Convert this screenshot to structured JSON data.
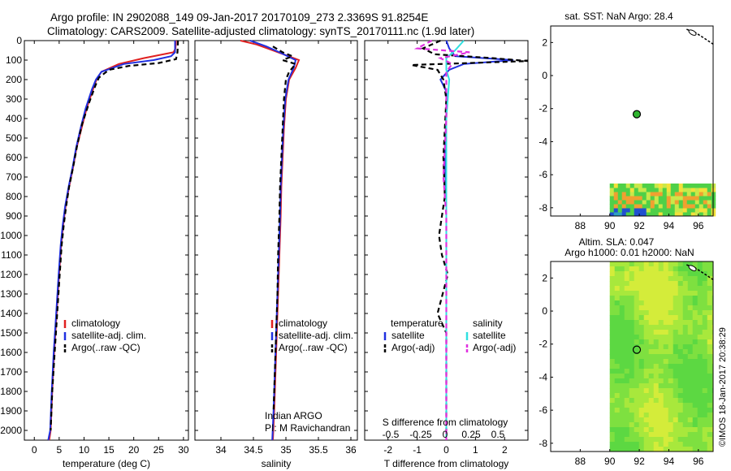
{
  "header": {
    "line1": "Argo profile: IN 2902088_149 09-Jan-2017 20170109_273 2.3369S 91.8254E",
    "line2": "Climatology: CARS2009. Satellite-adjusted climatology: synTS_20170111.nc (1.9d later)"
  },
  "colors": {
    "clim": "#e02020",
    "sat": "#2030e0",
    "argo": "#000000",
    "sal_sat": "#30e0e0",
    "sal_argo": "#e030e0"
  },
  "chart_data": [
    {
      "id": "temperature",
      "type": "line",
      "xlabel": "temperature (deg C)",
      "ylabel": "depth",
      "xlim": [
        -2,
        31
      ],
      "ylim": [
        0,
        2050
      ],
      "xticks": [
        0,
        5,
        10,
        15,
        20,
        25,
        30
      ],
      "yticks": [
        0,
        100,
        200,
        300,
        400,
        500,
        600,
        700,
        800,
        900,
        1000,
        1100,
        1200,
        1300,
        1400,
        1500,
        1600,
        1700,
        1800,
        1900,
        2000
      ],
      "legend": [
        "climatology",
        "satellite-adj. clim.",
        "Argo(..raw -QC)"
      ],
      "series": [
        {
          "name": "climatology",
          "color": "clim",
          "dash": false,
          "points": [
            [
              28.5,
              0
            ],
            [
              28.4,
              40
            ],
            [
              28.0,
              60
            ],
            [
              22.0,
              90
            ],
            [
              17.0,
              120
            ],
            [
              13.5,
              160
            ],
            [
              12.5,
              200
            ],
            [
              11.8,
              250
            ],
            [
              10.5,
              350
            ],
            [
              9.5,
              450
            ],
            [
              8.5,
              550
            ],
            [
              7.8,
              650
            ],
            [
              7.0,
              750
            ],
            [
              6.3,
              850
            ],
            [
              5.8,
              950
            ],
            [
              5.4,
              1050
            ],
            [
              5.0,
              1200
            ],
            [
              4.5,
              1400
            ],
            [
              4.0,
              1600
            ],
            [
              3.6,
              1800
            ],
            [
              3.3,
              2000
            ],
            [
              3.0,
              2050
            ]
          ]
        },
        {
          "name": "satellite-adj. clim.",
          "color": "sat",
          "dash": false,
          "points": [
            [
              28.3,
              0
            ],
            [
              28.3,
              60
            ],
            [
              27.5,
              80
            ],
            [
              24.0,
              100
            ],
            [
              18.0,
              120
            ],
            [
              13.5,
              160
            ],
            [
              12.4,
              200
            ],
            [
              11.6,
              250
            ],
            [
              10.3,
              350
            ],
            [
              9.3,
              450
            ],
            [
              8.4,
              550
            ],
            [
              7.7,
              650
            ],
            [
              6.9,
              750
            ],
            [
              6.2,
              850
            ],
            [
              5.7,
              950
            ],
            [
              5.3,
              1050
            ],
            [
              4.9,
              1200
            ],
            [
              4.4,
              1400
            ],
            [
              3.9,
              1600
            ],
            [
              3.5,
              1800
            ],
            [
              3.2,
              2000
            ],
            [
              2.8,
              2050
            ]
          ]
        },
        {
          "name": "Argo(..raw -QC)",
          "color": "argo",
          "dash": true,
          "points": [
            [
              28.9,
              0
            ],
            [
              28.8,
              60
            ],
            [
              28.5,
              95
            ],
            [
              25.0,
              115
            ],
            [
              19.0,
              130
            ],
            [
              15.0,
              150
            ],
            [
              13.0,
              190
            ],
            [
              12.3,
              230
            ],
            [
              11.0,
              320
            ],
            [
              9.6,
              430
            ],
            [
              8.6,
              540
            ],
            [
              7.8,
              650
            ],
            [
              7.0,
              750
            ],
            [
              6.4,
              850
            ],
            [
              5.9,
              950
            ],
            [
              5.5,
              1050
            ],
            [
              5.1,
              1200
            ],
            [
              4.6,
              1400
            ],
            [
              4.1,
              1600
            ],
            [
              3.6,
              1800
            ],
            [
              3.3,
              2000
            ]
          ]
        }
      ]
    },
    {
      "id": "salinity",
      "type": "line",
      "xlabel": "salinity",
      "ylabel": "depth",
      "xlim": [
        33.6,
        36.1
      ],
      "ylim": [
        0,
        2050
      ],
      "xticks": [
        34,
        34.5,
        35,
        35.5,
        36
      ],
      "legend": [
        "climatology",
        "satellite-adj. clim.",
        "Argo(..raw -QC)"
      ],
      "annotation": [
        "Indian ARGO",
        "PI: M Ravichandran"
      ],
      "series": [
        {
          "name": "climatology",
          "color": "clim",
          "dash": false,
          "points": [
            [
              34.3,
              0
            ],
            [
              34.55,
              20
            ],
            [
              34.8,
              50
            ],
            [
              35.2,
              100
            ],
            [
              35.15,
              140
            ],
            [
              35.05,
              200
            ],
            [
              35.0,
              300
            ],
            [
              34.97,
              450
            ],
            [
              34.95,
              600
            ],
            [
              34.93,
              750
            ],
            [
              34.92,
              900
            ],
            [
              34.9,
              1100
            ],
            [
              34.88,
              1300
            ],
            [
              34.86,
              1500
            ],
            [
              34.84,
              1700
            ],
            [
              34.82,
              1900
            ],
            [
              34.8,
              2050
            ]
          ]
        },
        {
          "name": "satellite-adj. clim.",
          "color": "sat",
          "dash": false,
          "points": [
            [
              34.45,
              0
            ],
            [
              34.7,
              30
            ],
            [
              34.9,
              60
            ],
            [
              35.15,
              100
            ],
            [
              35.12,
              140
            ],
            [
              35.04,
              200
            ],
            [
              34.99,
              300
            ],
            [
              34.96,
              450
            ],
            [
              34.94,
              600
            ],
            [
              34.92,
              750
            ],
            [
              34.91,
              900
            ],
            [
              34.89,
              1100
            ],
            [
              34.87,
              1300
            ],
            [
              34.85,
              1500
            ],
            [
              34.83,
              1700
            ],
            [
              34.81,
              1900
            ],
            [
              34.79,
              2050
            ]
          ]
        },
        {
          "name": "Argo(..raw -QC)",
          "color": "argo",
          "dash": true,
          "points": [
            [
              34.8,
              30
            ],
            [
              34.95,
              60
            ],
            [
              35.1,
              80
            ],
            [
              34.95,
              100
            ],
            [
              35.15,
              120
            ],
            [
              35.05,
              160
            ],
            [
              35.0,
              200
            ],
            [
              34.97,
              300
            ],
            [
              34.95,
              450
            ],
            [
              34.93,
              600
            ],
            [
              34.91,
              750
            ],
            [
              34.9,
              900
            ],
            [
              34.88,
              1100
            ],
            [
              34.87,
              1300
            ],
            [
              34.85,
              1500
            ],
            [
              34.83,
              1700
            ],
            [
              34.81,
              1900
            ]
          ]
        }
      ]
    },
    {
      "id": "difference",
      "type": "line",
      "xlabel": "T difference from climatology",
      "top_label": "S difference from climatology",
      "top_ticks": [
        "-0.5",
        "-0.25",
        "0",
        "0.25",
        "0.5"
      ],
      "xlim": [
        -2.8,
        2.8
      ],
      "ylim": [
        0,
        2050
      ],
      "xticks": [
        -2,
        -1,
        0,
        1,
        2
      ],
      "legend_left_title": "temperature",
      "legend_right_title": "salinity",
      "legend_left": [
        "satellite",
        "Argo(-adj)"
      ],
      "legend_right": [
        "satellite",
        "Argo(-adj)"
      ],
      "series": [
        {
          "name": "temperature satellite",
          "color": "sat",
          "dash": false,
          "points": [
            [
              0,
              0
            ],
            [
              0.1,
              40
            ],
            [
              0.3,
              80
            ],
            [
              2.3,
              100
            ],
            [
              0.6,
              120
            ],
            [
              0.1,
              150
            ],
            [
              -0.2,
              200
            ],
            [
              0,
              260
            ],
            [
              0,
              400
            ],
            [
              -0.05,
              600
            ],
            [
              0,
              800
            ],
            [
              0,
              1200
            ],
            [
              0,
              1600
            ],
            [
              0,
              2050
            ]
          ]
        },
        {
          "name": "temperature Argo",
          "color": "argo",
          "dash": true,
          "points": [
            [
              -0.2,
              0
            ],
            [
              -0.8,
              40
            ],
            [
              -0.4,
              70
            ],
            [
              1.6,
              90
            ],
            [
              2.8,
              105
            ],
            [
              -1.2,
              125
            ],
            [
              -0.3,
              150
            ],
            [
              -0.1,
              200
            ],
            [
              0,
              300
            ],
            [
              -0.1,
              600
            ],
            [
              -0.05,
              800
            ],
            [
              -0.25,
              1000
            ],
            [
              -0.15,
              1100
            ],
            [
              0.05,
              1200
            ],
            [
              -0.3,
              1400
            ],
            [
              0,
              1500
            ],
            [
              0,
              1700
            ],
            [
              0,
              2000
            ]
          ]
        },
        {
          "name": "salinity satellite",
          "color": "sal_sat",
          "dash": false,
          "points": [
            [
              0.6,
              0
            ],
            [
              0.3,
              50
            ],
            [
              0,
              90
            ],
            [
              0,
              150
            ],
            [
              0.1,
              200
            ],
            [
              0,
              400
            ],
            [
              0,
              800
            ],
            [
              0,
              1200
            ],
            [
              0,
              1600
            ],
            [
              0,
              2050
            ]
          ]
        },
        {
          "name": "salinity Argo",
          "color": "sal_argo",
          "dash": true,
          "points": [
            [
              -0.5,
              0
            ],
            [
              -1.0,
              40
            ],
            [
              0.8,
              60
            ],
            [
              -0.2,
              90
            ],
            [
              0.2,
              120
            ],
            [
              0,
              160
            ],
            [
              0,
              400
            ],
            [
              -0.1,
              700
            ],
            [
              0,
              900
            ],
            [
              0,
              1200
            ],
            [
              0,
              1600
            ],
            [
              0,
              2050
            ]
          ]
        }
      ]
    },
    {
      "id": "sst_map",
      "type": "heatmap",
      "title": "sat. SST: NaN Argo: 28.4",
      "xlim": [
        86,
        97
      ],
      "ylim": [
        -8.5,
        3
      ],
      "xticks": [
        88,
        90,
        92,
        94,
        96
      ],
      "yticks": [
        2,
        0,
        -2,
        -4,
        -6,
        -8
      ],
      "marker": [
        91.83,
        -2.34
      ],
      "coast": [
        [
          95.2,
          2.8
        ],
        [
          95.8,
          2.6
        ],
        [
          96.5,
          2.2
        ],
        [
          97,
          1.9
        ]
      ]
    },
    {
      "id": "sla_map",
      "type": "heatmap",
      "title": "Altim. SLA: 0.047",
      "subtitle": "Argo h1000: 0.01 h2000: NaN",
      "xlim": [
        86,
        97
      ],
      "ylim": [
        -8.5,
        3
      ],
      "xticks": [
        88,
        90,
        92,
        94,
        96
      ],
      "yticks": [
        2,
        0,
        -2,
        -4,
        -6,
        -8
      ],
      "marker": [
        91.83,
        -2.34
      ],
      "coast": [
        [
          95.2,
          2.8
        ],
        [
          95.8,
          2.6
        ],
        [
          96.5,
          2.2
        ],
        [
          97,
          1.9
        ]
      ]
    }
  ],
  "credit": "©IMOS 18-Jan-2017 20:38:29"
}
